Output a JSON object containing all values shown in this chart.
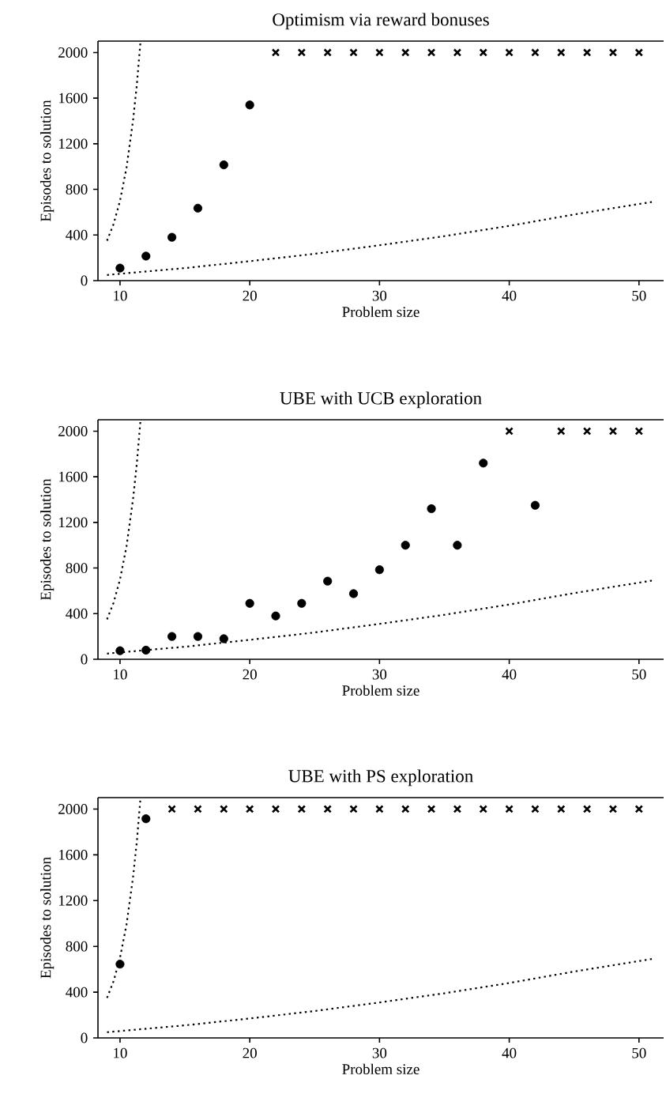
{
  "chart_data": [
    {
      "type": "scatter",
      "title": "Optimism via reward bonuses",
      "xlabel": "Problem size",
      "ylabel": "Episodes to solution",
      "xlim": [
        8.3,
        51.9
      ],
      "ylim": [
        0,
        2100
      ],
      "xticks": [
        10,
        20,
        30,
        40,
        50
      ],
      "yticks": [
        0,
        400,
        800,
        1200,
        1600,
        2000
      ],
      "grid": false,
      "series": [
        {
          "marker": "circle",
          "color": "#000000",
          "x": [
            10,
            12,
            14,
            16,
            18,
            20
          ],
          "values": [
            110,
            215,
            380,
            635,
            1015,
            1540
          ]
        },
        {
          "marker": "cross",
          "color": "#000000",
          "x": [
            22,
            24,
            26,
            28,
            30,
            32,
            34,
            36,
            38,
            40,
            42,
            44,
            46,
            48,
            50
          ],
          "values": [
            2000,
            2000,
            2000,
            2000,
            2000,
            2000,
            2000,
            2000,
            2000,
            2000,
            2000,
            2000,
            2000,
            2000,
            2000
          ]
        },
        {
          "type": "line",
          "marker": "none",
          "line_style": "dotted",
          "color": "#000000",
          "x": [
            9,
            9.5,
            10,
            10.5,
            11,
            11.3,
            11.58
          ],
          "values": [
            350,
            495,
            700,
            990,
            1400,
            1720,
            2100
          ]
        },
        {
          "type": "line",
          "marker": "none",
          "line_style": "dotted",
          "color": "#000000",
          "x": [
            9,
            15,
            20,
            25,
            30,
            35,
            40,
            45,
            51
          ],
          "values": [
            50,
            110,
            170,
            235,
            310,
            390,
            480,
            580,
            690
          ]
        }
      ]
    },
    {
      "type": "scatter",
      "title": "UBE with UCB exploration",
      "xlabel": "Problem size",
      "ylabel": "Episodes to solution",
      "xlim": [
        8.3,
        51.9
      ],
      "ylim": [
        0,
        2100
      ],
      "xticks": [
        10,
        20,
        30,
        40,
        50
      ],
      "yticks": [
        0,
        400,
        800,
        1200,
        1600,
        2000
      ],
      "grid": false,
      "series": [
        {
          "marker": "circle",
          "color": "#000000",
          "x": [
            10,
            12,
            14,
            16,
            18,
            20,
            22,
            24,
            26,
            28,
            30,
            32,
            34,
            36,
            38,
            42
          ],
          "values": [
            75,
            80,
            200,
            200,
            180,
            490,
            380,
            490,
            685,
            575,
            785,
            1000,
            1320,
            1000,
            1720,
            1350
          ]
        },
        {
          "marker": "cross",
          "color": "#000000",
          "x": [
            40,
            44,
            46,
            48,
            50
          ],
          "values": [
            2000,
            2000,
            2000,
            2000,
            2000
          ]
        },
        {
          "type": "line",
          "marker": "none",
          "line_style": "dotted",
          "color": "#000000",
          "x": [
            9,
            9.5,
            10,
            10.5,
            11,
            11.3,
            11.58
          ],
          "values": [
            350,
            495,
            700,
            990,
            1400,
            1720,
            2100
          ]
        },
        {
          "type": "line",
          "marker": "none",
          "line_style": "dotted",
          "color": "#000000",
          "x": [
            9,
            15,
            20,
            25,
            30,
            35,
            40,
            45,
            51
          ],
          "values": [
            50,
            110,
            170,
            235,
            310,
            390,
            480,
            580,
            690
          ]
        }
      ]
    },
    {
      "type": "scatter",
      "title": "UBE with PS exploration",
      "xlabel": "Problem size",
      "ylabel": "Episodes to solution",
      "xlim": [
        8.3,
        51.9
      ],
      "ylim": [
        0,
        2100
      ],
      "xticks": [
        10,
        20,
        30,
        40,
        50
      ],
      "yticks": [
        0,
        400,
        800,
        1200,
        1600,
        2000
      ],
      "grid": false,
      "series": [
        {
          "marker": "circle",
          "color": "#000000",
          "x": [
            10,
            12
          ],
          "values": [
            645,
            1915
          ]
        },
        {
          "marker": "cross",
          "color": "#000000",
          "x": [
            14,
            16,
            18,
            20,
            22,
            24,
            26,
            28,
            30,
            32,
            34,
            36,
            38,
            40,
            42,
            44,
            46,
            48,
            50
          ],
          "values": [
            2000,
            2000,
            2000,
            2000,
            2000,
            2000,
            2000,
            2000,
            2000,
            2000,
            2000,
            2000,
            2000,
            2000,
            2000,
            2000,
            2000,
            2000,
            2000
          ]
        },
        {
          "type": "line",
          "marker": "none",
          "line_style": "dotted",
          "color": "#000000",
          "x": [
            9,
            9.5,
            10,
            10.5,
            11,
            11.3,
            11.58
          ],
          "values": [
            350,
            495,
            700,
            990,
            1400,
            1720,
            2100
          ]
        },
        {
          "type": "line",
          "marker": "none",
          "line_style": "dotted",
          "color": "#000000",
          "x": [
            9,
            15,
            20,
            25,
            30,
            35,
            40,
            45,
            51
          ],
          "values": [
            50,
            110,
            170,
            235,
            310,
            390,
            480,
            580,
            690
          ]
        }
      ]
    }
  ]
}
